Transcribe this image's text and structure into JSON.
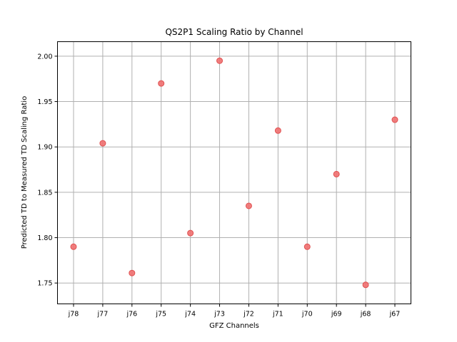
{
  "chart_data": {
    "type": "scatter",
    "title": "QS2P1 Scaling Ratio by Channel",
    "xlabel": "GFZ Channels",
    "ylabel": "Predicted TD to Measured TD Scaling Ratio",
    "categories": [
      "j78",
      "j77",
      "j76",
      "j75",
      "j74",
      "j73",
      "j72",
      "j71",
      "j70",
      "j69",
      "j68",
      "j67"
    ],
    "values": [
      1.79,
      1.904,
      1.761,
      1.97,
      1.805,
      1.995,
      1.835,
      1.918,
      1.79,
      1.87,
      1.748,
      1.93
    ],
    "ylim": [
      1.727,
      2.016
    ],
    "yticks": [
      "1.75",
      "1.80",
      "1.85",
      "1.90",
      "1.95",
      "2.00"
    ],
    "grid": true,
    "marker_color": "#f07070",
    "marker_edge": "#e05050",
    "grid_color": "#b0b0b0"
  }
}
